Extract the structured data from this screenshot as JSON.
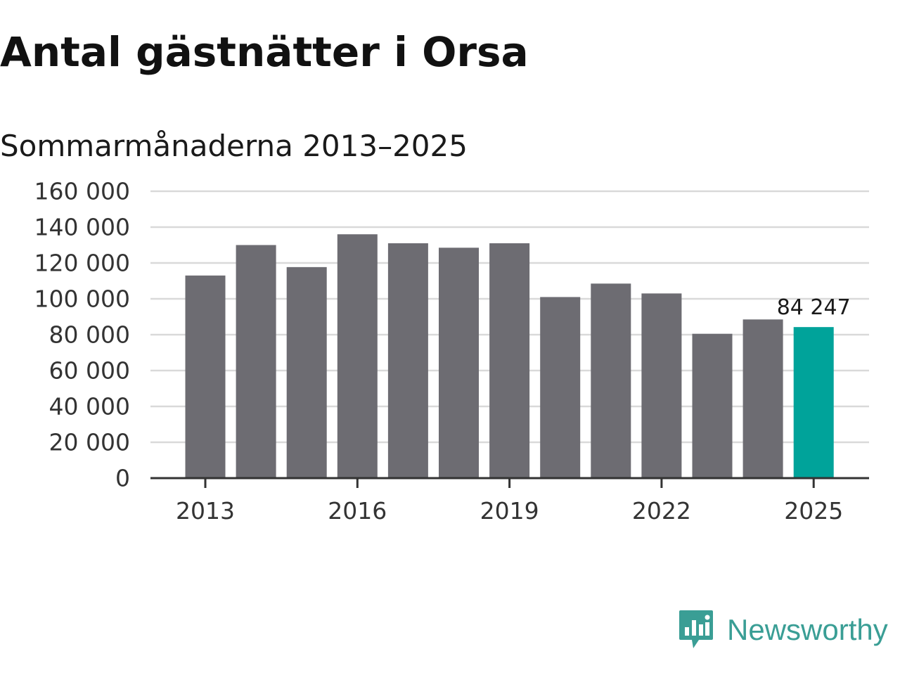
{
  "title": "Antal gästnätter i Orsa",
  "subtitle": "Sommarmånaderna 2013–2025",
  "brand": {
    "name": "Newsworthy",
    "icon": "newsworthy-logo-icon",
    "color": "#3a9e95"
  },
  "colors": {
    "bar": "#6d6c72",
    "highlight": "#00a39a",
    "grid": "#d9d9d9",
    "axis": "#333333"
  },
  "chart_data": {
    "type": "bar",
    "categories": [
      "2013",
      "2014",
      "2015",
      "2016",
      "2017",
      "2018",
      "2019",
      "2020",
      "2021",
      "2022",
      "2023",
      "2024",
      "2025"
    ],
    "values": [
      113000,
      130000,
      117700,
      136000,
      131000,
      128500,
      131000,
      101000,
      108500,
      103000,
      80500,
      88500,
      84247
    ],
    "highlight_category": "2025",
    "data_labels": [
      {
        "category": "2025",
        "text": "84 247"
      }
    ],
    "xtick_labels": [
      "2013",
      "2016",
      "2019",
      "2022",
      "2025"
    ],
    "ytick_values": [
      0,
      20000,
      40000,
      60000,
      80000,
      100000,
      120000,
      140000,
      160000
    ],
    "ytick_labels": [
      "0",
      "20 000",
      "40 000",
      "60 000",
      "80 000",
      "100 000",
      "120 000",
      "140 000",
      "160 000"
    ],
    "ylim": [
      0,
      160000
    ],
    "grid": true,
    "legend": "none",
    "xlabel": "",
    "ylabel": ""
  }
}
